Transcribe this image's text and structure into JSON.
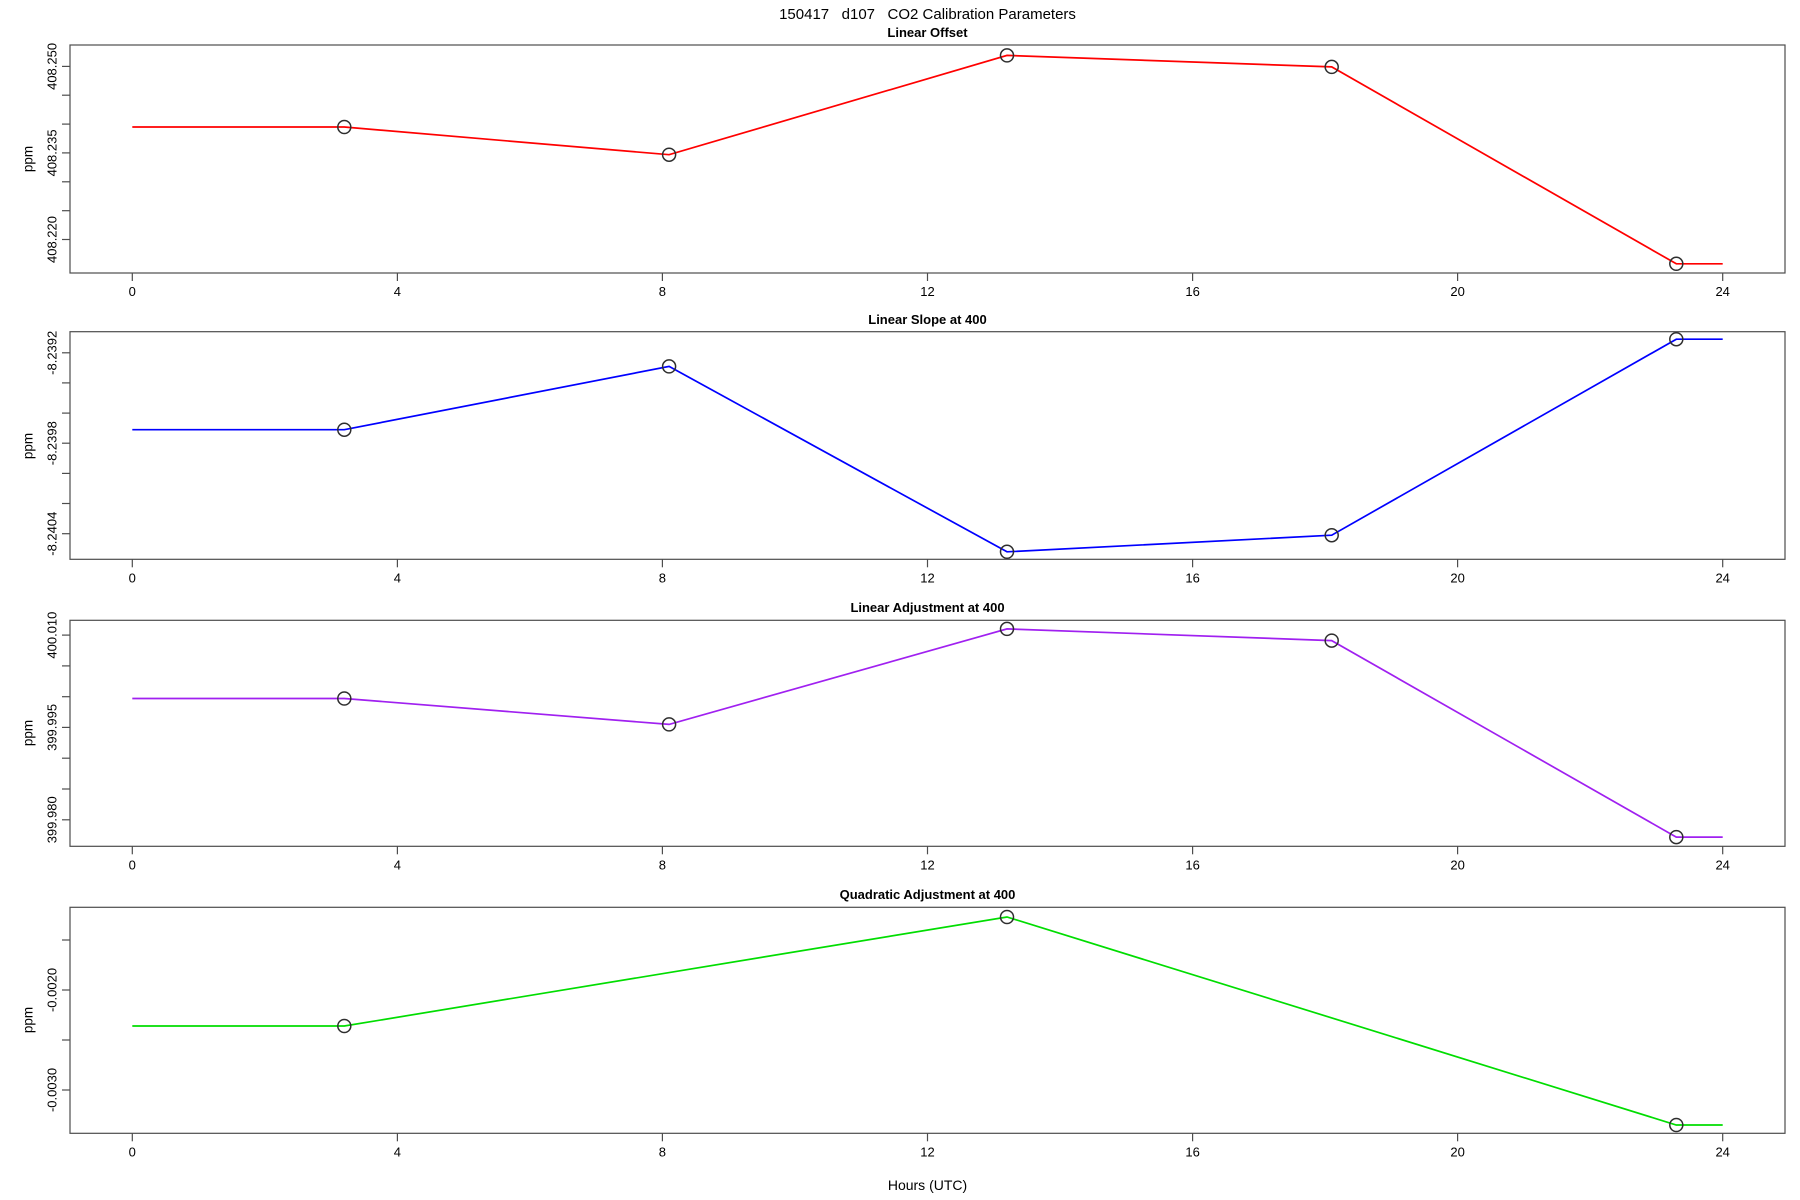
{
  "figure": {
    "title": "150417   d107   CO2 Calibration Parameters",
    "x_axis_label": "Hours (UTC)",
    "y_axis_label": "ppm",
    "background_color": "#FFFFFF",
    "axis_color": "#4D4D4D",
    "marker_color": "#2E2E2E"
  },
  "chart_data": {
    "type": "line",
    "title": "150417   d107   CO2 Calibration Parameters",
    "xlabel": "Hours (UTC)",
    "ylabel": "ppm",
    "x_ticks": [
      0,
      4,
      8,
      12,
      16,
      20,
      24
    ],
    "xlim": [
      -0.94,
      24.94
    ],
    "legend": "none",
    "grid": false,
    "panels": [
      {
        "id": "linear-offset",
        "title": "Linear Offset",
        "color": "#FF0000",
        "x": [
          0,
          3.2,
          8.1,
          13.2,
          18.1,
          23.3,
          24
        ],
        "y": [
          408.2395,
          408.2395,
          408.2347,
          408.2519,
          408.2499,
          408.2158,
          408.2158
        ],
        "marker_indices": [
          1,
          2,
          3,
          4,
          5
        ],
        "ylim": [
          408.2142,
          408.2537
        ],
        "y_ticks": [
          408.22,
          408.225,
          408.23,
          408.235,
          408.24,
          408.245,
          408.25
        ],
        "y_tick_labels": [
          "408.220",
          "",
          "",
          "408.235",
          "",
          "",
          "408.250"
        ]
      },
      {
        "id": "linear-slope-at-400",
        "title": "Linear Slope at 400",
        "color": "#0000FF",
        "x": [
          0,
          3.2,
          8.1,
          13.2,
          18.1,
          23.3,
          24
        ],
        "y": [
          -8.23971,
          -8.23971,
          -8.23929,
          -8.24052,
          -8.24041,
          -8.23911,
          -8.23911
        ],
        "marker_indices": [
          1,
          2,
          3,
          4,
          5
        ],
        "ylim": [
          -8.24057,
          -8.23906
        ],
        "y_ticks": [
          -8.2404,
          -8.2402,
          -8.24,
          -8.2398,
          -8.2396,
          -8.2394,
          -8.2392
        ],
        "y_tick_labels": [
          "-8.2404",
          "",
          "",
          "-8.2398",
          "",
          "",
          "-8.2392"
        ]
      },
      {
        "id": "linear-adjustment-at-400",
        "title": "Linear Adjustment at 400",
        "color": "#A020F0",
        "x": [
          0,
          3.2,
          8.1,
          13.2,
          18.1,
          23.3,
          24
        ],
        "y": [
          399.9997,
          399.9997,
          399.9955,
          400.011,
          400.0091,
          399.9772,
          399.9772
        ],
        "marker_indices": [
          1,
          2,
          3,
          4,
          5
        ],
        "ylim": [
          399.9757,
          400.0124
        ],
        "y_ticks": [
          399.98,
          399.985,
          399.99,
          399.995,
          400.0,
          400.005,
          400.01
        ],
        "y_tick_labels": [
          "399.980",
          "",
          "",
          "399.995",
          "",
          "",
          "400.010"
        ]
      },
      {
        "id": "quadratic-adjustment-at-400",
        "title": "Quadratic Adjustment at 400",
        "color": "#00DD00",
        "x": [
          0,
          3.2,
          13.2,
          23.3,
          24
        ],
        "y": [
          -0.00236,
          -0.00236,
          -0.00127,
          -0.00335,
          -0.00335
        ],
        "marker_indices": [
          1,
          2,
          3
        ],
        "ylim": [
          -0.003433,
          -0.001173
        ],
        "y_ticks": [
          -0.003,
          -0.0025,
          -0.002,
          -0.0015
        ],
        "y_tick_labels": [
          "-0.0030",
          "",
          "-0.0020",
          ""
        ]
      }
    ]
  }
}
